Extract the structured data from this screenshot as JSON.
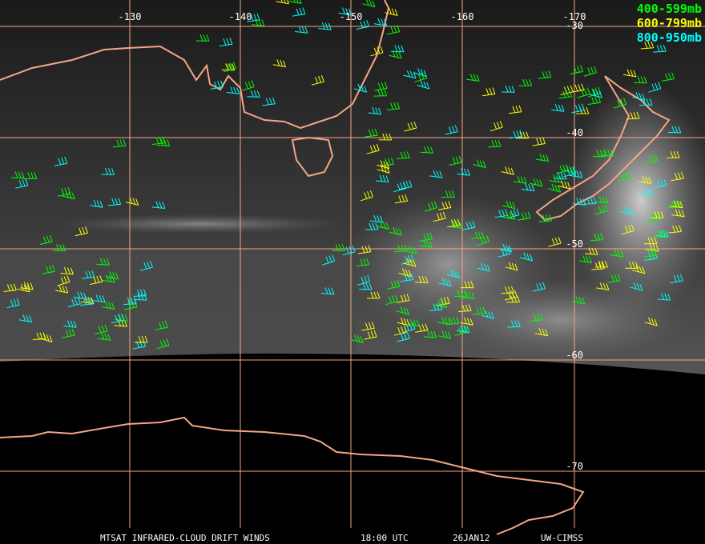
{
  "map": {
    "longitude_labels": [
      "-130",
      "-140",
      "-150",
      "-160",
      "-170"
    ],
    "latitude_labels": [
      "-30",
      "-40",
      "-50",
      "-60",
      "-70"
    ],
    "legend": [
      {
        "label": "400-599mb",
        "color": "#00ff00"
      },
      {
        "label": "600-799mb",
        "color": "#ffff00"
      },
      {
        "label": "800-950mb",
        "color": "#00ffff"
      }
    ],
    "footer": [
      "MTSAT INFRARED-CLOUD DRIFT WINDS",
      "18:00 UTC",
      "26JAN12",
      "UW-CIMSS"
    ]
  }
}
